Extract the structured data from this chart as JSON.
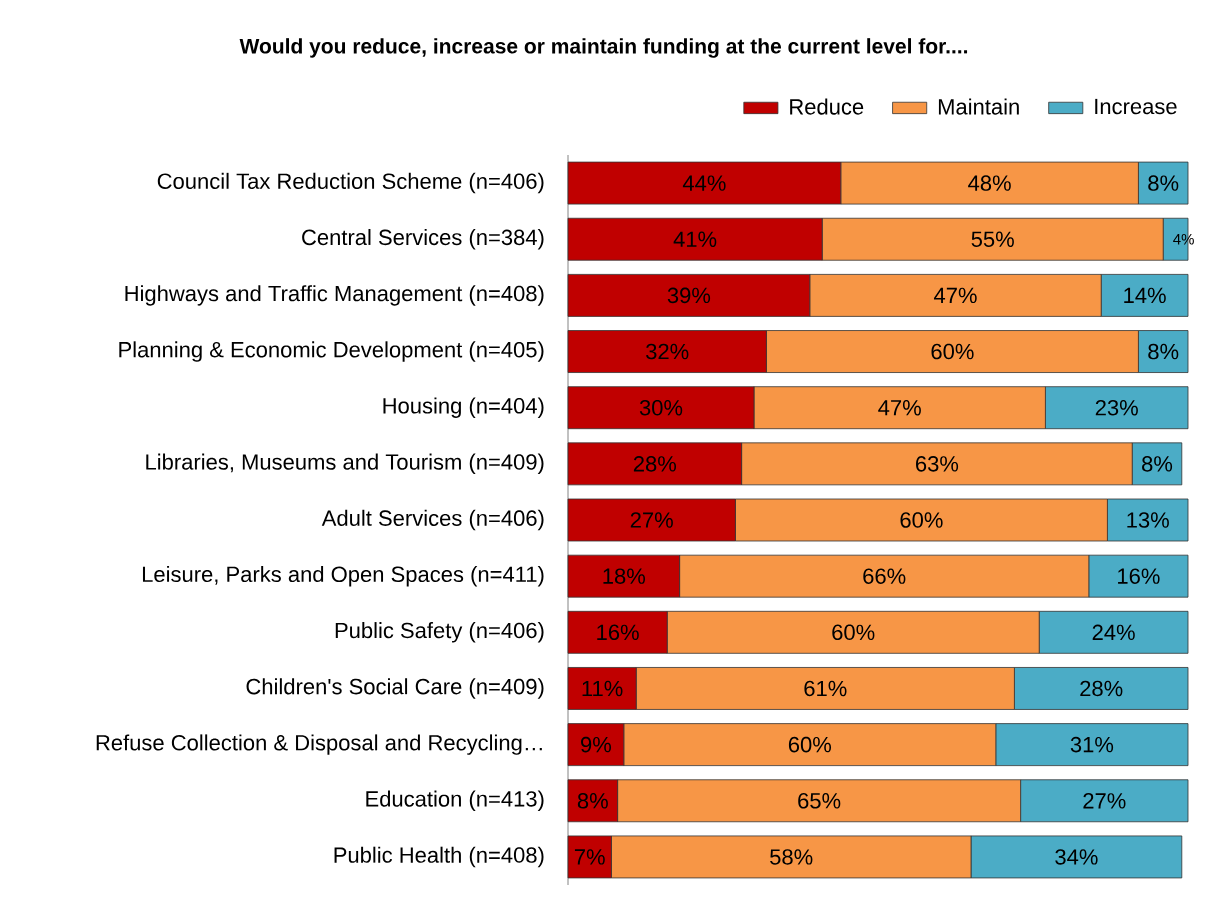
{
  "chart_data": {
    "type": "bar",
    "orientation": "horizontal",
    "stacked": true,
    "title": "Would you reduce, increase or maintain funding at the current level for....",
    "legend": "top right",
    "tick_labels": "y",
    "categories": [
      "Council Tax Reduction Scheme (n=406)",
      "Central Services (n=384)",
      "Highways and Traffic Management (n=408)",
      "Planning & Economic Development (n=405)",
      "Housing (n=404)",
      "Libraries, Museums and Tourism (n=409)",
      "Adult Services (n=406)",
      "Leisure, Parks and Open Spaces (n=411)",
      "Public Safety (n=406)",
      "Children's Social Care (n=409)",
      "Refuse Collection & Disposal and Recycling…",
      "Education (n=413)",
      "Public Health (n=408)"
    ],
    "series": [
      {
        "name": "Reduce",
        "color": "#c00000",
        "values": [
          44,
          41,
          39,
          32,
          30,
          28,
          27,
          18,
          16,
          11,
          9,
          8,
          7
        ],
        "value_labels": [
          "44%",
          "41%",
          "39%",
          "32%",
          "30%",
          "28%",
          "27%",
          "18%",
          "16%",
          "11%",
          "9%",
          "8%",
          "7%"
        ]
      },
      {
        "name": "Maintain",
        "color": "#f79646",
        "values": [
          48,
          55,
          47,
          60,
          47,
          63,
          60,
          66,
          60,
          61,
          60,
          65,
          58
        ],
        "value_labels": [
          "48%",
          "55%",
          "47%",
          "60%",
          "47%",
          "63%",
          "60%",
          "66%",
          "60%",
          "61%",
          "60%",
          "65%",
          "58%"
        ]
      },
      {
        "name": "Increase",
        "color": "#4bacc6",
        "values": [
          8,
          4,
          14,
          8,
          23,
          8,
          13,
          16,
          24,
          28,
          31,
          27,
          34
        ],
        "value_labels": [
          "8%",
          "4%",
          "14%",
          "8%",
          "23%",
          "8%",
          "13%",
          "16%",
          "24%",
          "28%",
          "31%",
          "27%",
          "34%"
        ]
      }
    ]
  }
}
